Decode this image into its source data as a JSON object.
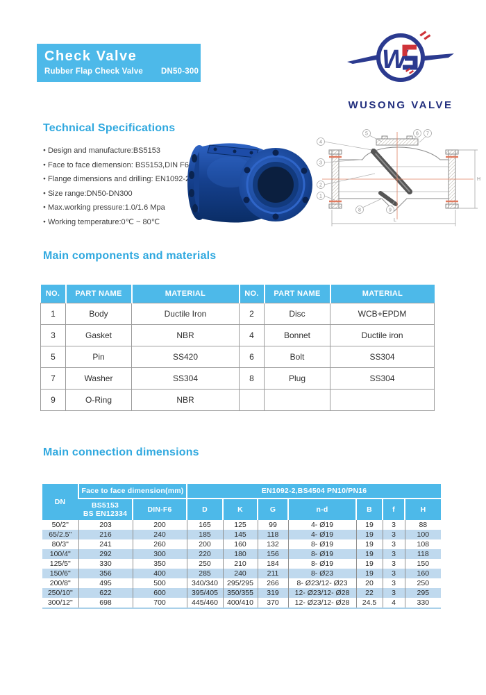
{
  "header": {
    "title": "Check Valve",
    "subtitle": "Rubber Flap Check Valve",
    "size_range": "DN50-300"
  },
  "logo": {
    "brand": "WUSONG VALVE",
    "letter": "W"
  },
  "tech_specs": {
    "title": "Technical Specifications",
    "items": [
      "Design and manufacture:BS5153",
      "Face to face diemension: BS5153,DIN F6",
      "Flange dimensions and drilling: EN1092-2",
      "Size range:DN50-DN300",
      "Max.working pressure:1.0/1.6 Mpa",
      "Working temperature:0℃ ~ 80℃"
    ]
  },
  "components": {
    "title": "Main components and materials",
    "headers": [
      "NO.",
      "PART NAME",
      "MATERIAL",
      "NO.",
      "PART NAME",
      "MATERIAL"
    ],
    "rows": [
      [
        "1",
        "Body",
        "Ductile Iron",
        "2",
        "Disc",
        "WCB+EPDM"
      ],
      [
        "3",
        "Gasket",
        "NBR",
        "4",
        "Bonnet",
        "Ductile iron"
      ],
      [
        "5",
        "Pin",
        "SS420",
        "6",
        "Bolt",
        "SS304"
      ],
      [
        "7",
        "Washer",
        "SS304",
        "8",
        "Plug",
        "SS304"
      ],
      [
        "9",
        "O-Ring",
        "NBR",
        "",
        "",
        ""
      ]
    ]
  },
  "dimensions": {
    "title": "Main connection dimensions",
    "group_headers": {
      "dn": "DN",
      "face_to_face": "Face to face dimension(mm)",
      "en": "EN1092-2,BS4504    PN10/PN16"
    },
    "sub_headers": [
      "BS5153\nBS EN12334",
      "DIN-F6",
      "D",
      "K",
      "G",
      "n-d",
      "B",
      "f",
      "H"
    ],
    "rows": [
      [
        "50/2\"",
        "203",
        "200",
        "165",
        "125",
        "99",
        "4- Ø19",
        "19",
        "3",
        "88"
      ],
      [
        "65/2.5\"",
        "216",
        "240",
        "185",
        "145",
        "118",
        "4- Ø19",
        "19",
        "3",
        "100"
      ],
      [
        "80/3\"",
        "241",
        "260",
        "200",
        "160",
        "132",
        "8- Ø19",
        "19",
        "3",
        "108"
      ],
      [
        "100/4\"",
        "292",
        "300",
        "220",
        "180",
        "156",
        "8- Ø19",
        "19",
        "3",
        "118"
      ],
      [
        "125/5\"",
        "330",
        "350",
        "250",
        "210",
        "184",
        "8- Ø19",
        "19",
        "3",
        "150"
      ],
      [
        "150/6\"",
        "356",
        "400",
        "285",
        "240",
        "211",
        "8- Ø23",
        "19",
        "3",
        "160"
      ],
      [
        "200/8\"",
        "495",
        "500",
        "340/340",
        "295/295",
        "266",
        "8- Ø23/12- Ø23",
        "20",
        "3",
        "250"
      ],
      [
        "250/10\"",
        "622",
        "600",
        "395/405",
        "350/355",
        "319",
        "12- Ø23/12- Ø28",
        "22",
        "3",
        "295"
      ],
      [
        "300/12\"",
        "698",
        "700",
        "445/460",
        "400/410",
        "370",
        "12- Ø23/12- Ø28",
        "24.5",
        "4",
        "330"
      ]
    ]
  },
  "drawing": {
    "callouts": [
      "1",
      "2",
      "3",
      "4",
      "5",
      "6",
      "7",
      "8",
      "9"
    ],
    "dim_length_label": "L",
    "dim_height_label": "H"
  },
  "colors": {
    "accent": "#4db9e9",
    "heading_blue": "#2fa8df",
    "row_stripe": "#bfd9ee",
    "logo_navy": "#2b3a8f",
    "logo_red": "#cf3339",
    "valve_blue": "#1c4fae"
  }
}
